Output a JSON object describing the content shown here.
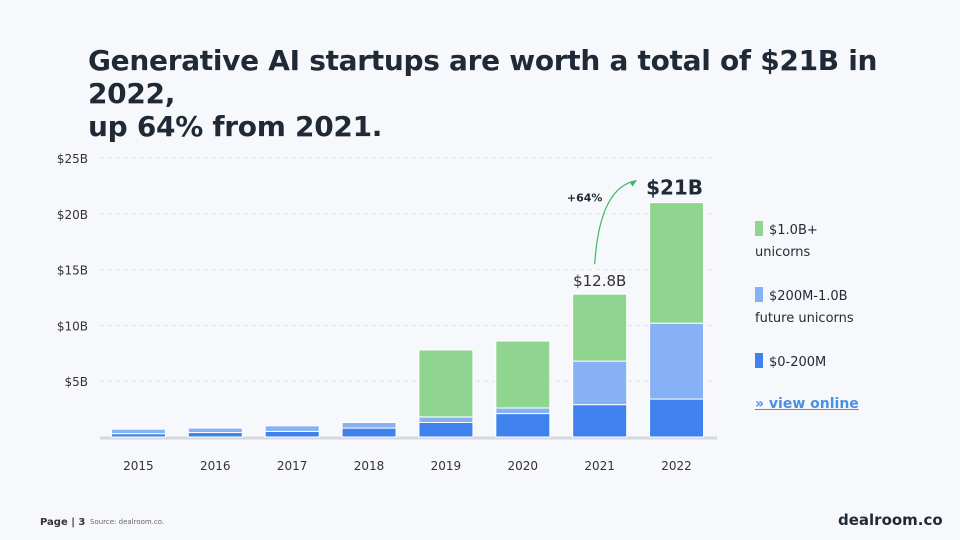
{
  "title": {
    "line1": "Generative AI startups are worth a total of $21B in 2022,",
    "line2": "up 64% from 2021."
  },
  "chart_data": {
    "type": "bar",
    "stacked": true,
    "title": "Generative AI startups are worth a total of $21B in 2022, up 64% from 2021.",
    "categories": [
      "2015",
      "2016",
      "2017",
      "2018",
      "2019",
      "2020",
      "2021",
      "2022"
    ],
    "series": [
      {
        "name": "$0-200M",
        "color": "#3f82ee",
        "values": [
          0.3,
          0.4,
          0.5,
          0.8,
          1.3,
          2.1,
          2.9,
          3.4
        ]
      },
      {
        "name": "$200M-1.0B future unicorns",
        "color": "#87b1f5",
        "values": [
          0.4,
          0.4,
          0.5,
          0.5,
          0.5,
          0.5,
          3.9,
          6.8
        ]
      },
      {
        "name": "$1.0B+ unicorns",
        "color": "#8fd58f",
        "values": [
          0.0,
          0.0,
          0.0,
          0.0,
          6.0,
          6.0,
          6.0,
          10.8
        ]
      }
    ],
    "ylim": [
      0,
      25
    ],
    "yticks": [
      5,
      10,
      15,
      20,
      25
    ],
    "ytick_labels": [
      "$5B",
      "$10B",
      "$15B",
      "$20B",
      "$25B"
    ],
    "xlabel": "",
    "ylabel": "",
    "annotations": {
      "label_2021": "$12.8B",
      "label_2022": "$21B",
      "growth": "+64%"
    }
  },
  "legend": {
    "items": [
      {
        "line1": "$1.0B+",
        "line2": "unicorns",
        "color": "#8fd58f"
      },
      {
        "line1": "$200M-1.0B",
        "line2": "future unicorns",
        "color": "#87b1f5"
      },
      {
        "line1": "$0-200M",
        "line2": "",
        "color": "#3f82ee"
      }
    ],
    "view_online": "» view online"
  },
  "footer": {
    "page": "Page | 3",
    "source": "Source: dealroom.co.",
    "brand": "dealroom.co"
  }
}
